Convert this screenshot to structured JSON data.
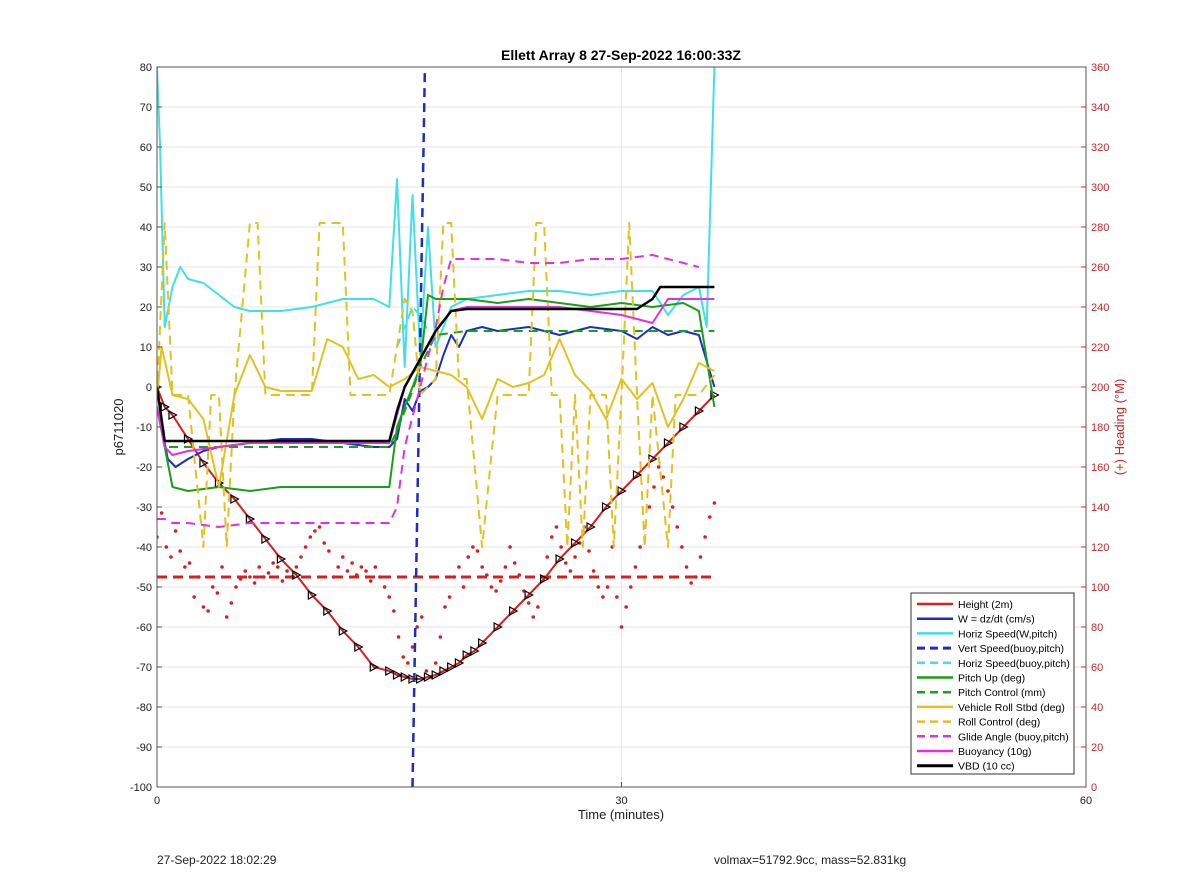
{
  "footer": {
    "left": "27-Sep-2022 18:02:29",
    "right": "volmax=51792.9cc, mass=52.831kg"
  },
  "chart_data": {
    "type": "line",
    "title": "Ellett Array 8 27-Sep-2022 16:00:33Z",
    "xlabel": "Time (minutes)",
    "ylabel": "p6711020",
    "y2label": "(+) Heading (°M)",
    "xlim": [
      0,
      60
    ],
    "ylim": [
      -100,
      80
    ],
    "y2lim": [
      0,
      360
    ],
    "xticks": [
      0,
      30,
      60
    ],
    "yticks": [
      80,
      70,
      60,
      50,
      40,
      30,
      20,
      10,
      0,
      -10,
      -20,
      -30,
      -40,
      -50,
      -60,
      -70,
      -80,
      -90,
      -100
    ],
    "y2ticks": [
      360,
      340,
      320,
      300,
      280,
      260,
      240,
      220,
      200,
      180,
      160,
      140,
      120,
      100,
      80,
      60,
      40,
      20,
      0
    ],
    "grid": true,
    "legend_position": "bottom-right",
    "series": [
      {
        "name": "Height (2m)",
        "color": "#d42020",
        "style": "solid",
        "width": 2,
        "markers": "triangle",
        "x": [
          0,
          0.5,
          1,
          2,
          3,
          4,
          5,
          6,
          7,
          8,
          9,
          10,
          11,
          12,
          13,
          14,
          15,
          15.5,
          16,
          16.5,
          17,
          17.5,
          18,
          18.5,
          19,
          19.5,
          20,
          20.5,
          21,
          22,
          23,
          24,
          25,
          26,
          27,
          28,
          29,
          30,
          31,
          32,
          33,
          34,
          35,
          36
        ],
        "y": [
          0,
          -5,
          -7,
          -13,
          -19,
          -24,
          -28,
          -33,
          -38,
          -43,
          -47,
          -52,
          -56,
          -61,
          -65,
          -70,
          -71,
          -72,
          -72.5,
          -73,
          -73,
          -72.5,
          -72,
          -71,
          -70,
          -69,
          -67,
          -66,
          -64,
          -60,
          -56,
          -52,
          -48,
          -43,
          -39,
          -35,
          -30,
          -26,
          -22,
          -18,
          -14,
          -10,
          -6,
          -2
        ]
      },
      {
        "name": "W = dz/dt (cm/s)",
        "color": "#1c2ec0",
        "style": "solid",
        "width": 2,
        "x": [
          0,
          0.3,
          0.7,
          1.2,
          2,
          3,
          4,
          6,
          8,
          10,
          12,
          14,
          15,
          15.5,
          16,
          16.5,
          17,
          17.5,
          18,
          18.5,
          19,
          19.5,
          20,
          21,
          22,
          24,
          26,
          28,
          30,
          31,
          32,
          33,
          34,
          35,
          36
        ],
        "y": [
          -5,
          -10,
          -18,
          -20,
          -18,
          -16,
          -15,
          -14,
          -13,
          -13,
          -14,
          -15,
          -15,
          -13,
          -3,
          -6,
          -1,
          0,
          2,
          8,
          13,
          10,
          14,
          15,
          14,
          15,
          13,
          15,
          14,
          12,
          15,
          13,
          14,
          13,
          0
        ]
      },
      {
        "name": "Horiz Speed(W,pitch)",
        "color": "#3fe0e8",
        "style": "solid",
        "width": 2,
        "x": [
          0,
          0.2,
          0.5,
          1,
          1.5,
          2,
          3,
          4,
          5,
          6,
          8,
          10,
          12,
          14,
          15,
          15.5,
          16,
          16.5,
          17,
          17.5,
          18,
          19,
          20,
          22,
          24,
          26,
          28,
          30,
          32,
          33,
          34,
          35,
          35.5,
          36
        ],
        "y": [
          80,
          60,
          15,
          25,
          30,
          27,
          26,
          23,
          20,
          19,
          19,
          20,
          22,
          22,
          20,
          52,
          5,
          48,
          8,
          40,
          10,
          20,
          22,
          23,
          24,
          24,
          23,
          24,
          24,
          18,
          23,
          25,
          15,
          80
        ]
      },
      {
        "name": "Vert Speed(buoy,pitch)",
        "color": "#1c2ec0",
        "style": "dashed",
        "width": 2.5,
        "x": [
          16.5,
          17.3
        ],
        "y": [
          -100,
          80
        ]
      },
      {
        "name": "Horiz Speed(buoy,pitch)",
        "color": "#3fe0e8",
        "style": "dashed",
        "width": 2,
        "x": [
          15.5,
          16,
          16.5,
          17,
          17.5
        ],
        "y": [
          10,
          15,
          20,
          18,
          14
        ]
      },
      {
        "name": "Pitch Up (deg)",
        "color": "#18a018",
        "style": "solid",
        "width": 2,
        "x": [
          0,
          0.5,
          1,
          2,
          4,
          6,
          8,
          10,
          12,
          14,
          15,
          15.5,
          16,
          16.5,
          17,
          17.5,
          18,
          20,
          22,
          24,
          26,
          28,
          30,
          32,
          34,
          35,
          36
        ],
        "y": [
          -5,
          -15,
          -25,
          -26,
          -25,
          -26,
          -25,
          -25,
          -25,
          -25,
          -25,
          -10,
          -5,
          0,
          5,
          23,
          22,
          22,
          21,
          22,
          21,
          20,
          21,
          20,
          21,
          19,
          -5
        ]
      },
      {
        "name": "Pitch Control (mm)",
        "color": "#18a018",
        "style": "dashed",
        "width": 2,
        "x": [
          0,
          0.5,
          1,
          4,
          8,
          12,
          15,
          15.5,
          16,
          16.5,
          17,
          18,
          20,
          22,
          26,
          30,
          34,
          36
        ],
        "y": [
          -5,
          -15,
          -15,
          -15,
          -15,
          -15,
          -15,
          -11,
          -6,
          -1,
          5,
          13,
          14,
          14,
          14,
          14,
          14,
          14
        ]
      },
      {
        "name": "Vehicle Roll Stbd (deg)",
        "color": "#e4c020",
        "style": "solid",
        "width": 2,
        "x": [
          0,
          0.3,
          1,
          2,
          3,
          4,
          5,
          6,
          7,
          8,
          10,
          11,
          12,
          13,
          14,
          15,
          16,
          17,
          18,
          19,
          20,
          21,
          22,
          23,
          24,
          25,
          26,
          27,
          28,
          29,
          30,
          31,
          32,
          33,
          34,
          35,
          36
        ],
        "y": [
          -3,
          10,
          -2,
          -3,
          -8,
          -25,
          -2,
          8,
          0,
          -1,
          -1,
          12,
          10,
          2,
          3,
          0,
          2,
          5,
          4,
          3,
          0,
          -8,
          2,
          0,
          1,
          3,
          12,
          3,
          -1,
          -8,
          2,
          -3,
          1,
          -10,
          -3,
          6,
          4
        ]
      },
      {
        "name": "Roll Control (deg)",
        "color": "#e4c020",
        "style": "dashed",
        "width": 2,
        "x": [
          0,
          0.5,
          1,
          1.5,
          2,
          3,
          3.5,
          4,
          4.5,
          5,
          6,
          6.5,
          7,
          8,
          10,
          10.5,
          11,
          12,
          12.5,
          13,
          14,
          15,
          16,
          16.5,
          17,
          18,
          18.5,
          19,
          19.5,
          20,
          21,
          22,
          23,
          24,
          24.5,
          25,
          25.5,
          26,
          26.5,
          27,
          27.5,
          28,
          29,
          29.5,
          30,
          30.5,
          31,
          31.5,
          32,
          33,
          33.5,
          34,
          35,
          36
        ],
        "y": [
          -2,
          41,
          -2,
          -2,
          -2,
          -40,
          -2,
          -2,
          -40,
          -2,
          41,
          41,
          -2,
          -2,
          -2,
          41,
          41,
          41,
          -2,
          -2,
          -2,
          -2,
          22,
          19,
          -2,
          2,
          41,
          41,
          2,
          2,
          -40,
          -2,
          -2,
          -2,
          41,
          41,
          -2,
          -2,
          -40,
          -2,
          -40,
          -2,
          -2,
          -40,
          -2,
          41,
          -2,
          -40,
          -2,
          -40,
          -2,
          -2,
          -2,
          3
        ]
      },
      {
        "name": "Glide Angle (buoy,pitch)",
        "color": "#e030e0",
        "style": "dashed",
        "width": 2,
        "x": [
          0,
          0.5,
          1,
          2,
          4,
          6,
          8,
          10,
          12,
          14,
          15,
          15.5,
          16,
          17,
          18,
          18.5,
          19,
          20,
          22,
          24,
          26,
          28,
          30,
          32,
          34,
          35
        ],
        "y": [
          -33,
          -33,
          -34,
          -34,
          -35,
          -34,
          -34,
          -34,
          -34,
          -34,
          -34,
          -30,
          -15,
          0,
          15,
          25,
          32,
          32,
          32,
          31,
          31,
          32,
          32,
          33,
          31,
          30
        ]
      },
      {
        "name": "Buoyancy (10g)",
        "color": "#e030e0",
        "style": "solid",
        "width": 2,
        "x": [
          0,
          0.5,
          1,
          2,
          4,
          6,
          8,
          10,
          12,
          14,
          15,
          15.5,
          16,
          17,
          18,
          19,
          20,
          22,
          24,
          26,
          28,
          30,
          31,
          32,
          33,
          34,
          35,
          36
        ],
        "y": [
          -5,
          -15,
          -17,
          -16,
          -15,
          -14,
          -14,
          -14,
          -14,
          -14,
          -14,
          -7,
          0,
          7,
          14,
          19,
          20,
          20,
          20,
          20,
          19,
          18,
          17,
          16,
          22,
          22,
          22,
          22
        ]
      },
      {
        "name": "VBD (10 cc)",
        "color": "#000000",
        "style": "solid",
        "width": 2.5,
        "x": [
          0,
          0.5,
          1,
          4,
          8,
          12,
          15,
          15.5,
          16,
          17,
          18,
          19,
          20,
          22,
          26,
          30,
          31,
          32,
          32.5,
          34,
          36
        ],
        "y": [
          0,
          -13.5,
          -13.5,
          -13.5,
          -13.5,
          -13.5,
          -13.5,
          -6,
          0,
          7,
          14,
          19,
          19.5,
          19.5,
          19.5,
          19.5,
          19.5,
          22,
          25,
          25,
          25
        ]
      }
    ],
    "heading": {
      "axis": "right",
      "color": "#d42020",
      "dashed_reference": 105,
      "points_x": [
        0,
        0.3,
        0.6,
        0.9,
        1.2,
        1.5,
        1.8,
        2.1,
        2.4,
        2.7,
        3.0,
        3.3,
        3.6,
        3.9,
        4.2,
        4.5,
        4.8,
        5.1,
        5.4,
        5.7,
        6.0,
        6.3,
        6.6,
        6.9,
        7.2,
        7.5,
        7.8,
        8.1,
        8.4,
        8.7,
        9.0,
        9.3,
        9.6,
        9.9,
        10.2,
        10.5,
        10.8,
        11.1,
        11.4,
        11.7,
        12.0,
        12.3,
        12.6,
        12.9,
        13.2,
        13.5,
        13.8,
        14.1,
        14.4,
        14.7,
        15.0,
        15.3,
        15.6,
        15.9,
        16.2,
        16.5,
        16.8,
        17.1,
        17.4,
        17.7,
        18.0,
        18.3,
        18.6,
        18.9,
        19.2,
        19.5,
        19.8,
        20.1,
        20.4,
        20.7,
        21.0,
        21.3,
        21.6,
        21.9,
        22.2,
        22.5,
        22.8,
        23.1,
        23.4,
        23.7,
        24.0,
        24.3,
        24.6,
        24.9,
        25.2,
        25.5,
        25.8,
        26.1,
        26.4,
        26.7,
        27.0,
        27.3,
        27.6,
        27.9,
        28.2,
        28.5,
        28.8,
        29.1,
        29.4,
        29.7,
        30.0,
        30.3,
        30.6,
        30.9,
        31.2,
        31.5,
        31.8,
        32.1,
        32.4,
        32.7,
        33.0,
        33.3,
        33.6,
        33.9,
        34.2,
        34.5,
        34.8,
        35.1,
        35.4,
        35.7,
        36.0
      ],
      "points_y": [
        125,
        137,
        120,
        115,
        128,
        118,
        110,
        112,
        95,
        105,
        90,
        88,
        100,
        97,
        110,
        85,
        92,
        100,
        104,
        108,
        105,
        102,
        110,
        105,
        107,
        112,
        110,
        103,
        108,
        105,
        110,
        115,
        120,
        125,
        128,
        130,
        122,
        118,
        105,
        110,
        115,
        108,
        112,
        106,
        110,
        108,
        103,
        110,
        105,
        100,
        95,
        88,
        75,
        65,
        62,
        70,
        80,
        85,
        58,
        55,
        62,
        75,
        90,
        95,
        105,
        110,
        100,
        115,
        120,
        118,
        110,
        106,
        100,
        98,
        103,
        110,
        120,
        112,
        106,
        98,
        92,
        85,
        90,
        105,
        115,
        125,
        130,
        120,
        112,
        108,
        115,
        122,
        130,
        118,
        108,
        100,
        95,
        100,
        120,
        95,
        80,
        90,
        100,
        110,
        120,
        130,
        140,
        150,
        160,
        155,
        148,
        140,
        130,
        120,
        110,
        102,
        105,
        115,
        125,
        135,
        142
      ]
    }
  }
}
